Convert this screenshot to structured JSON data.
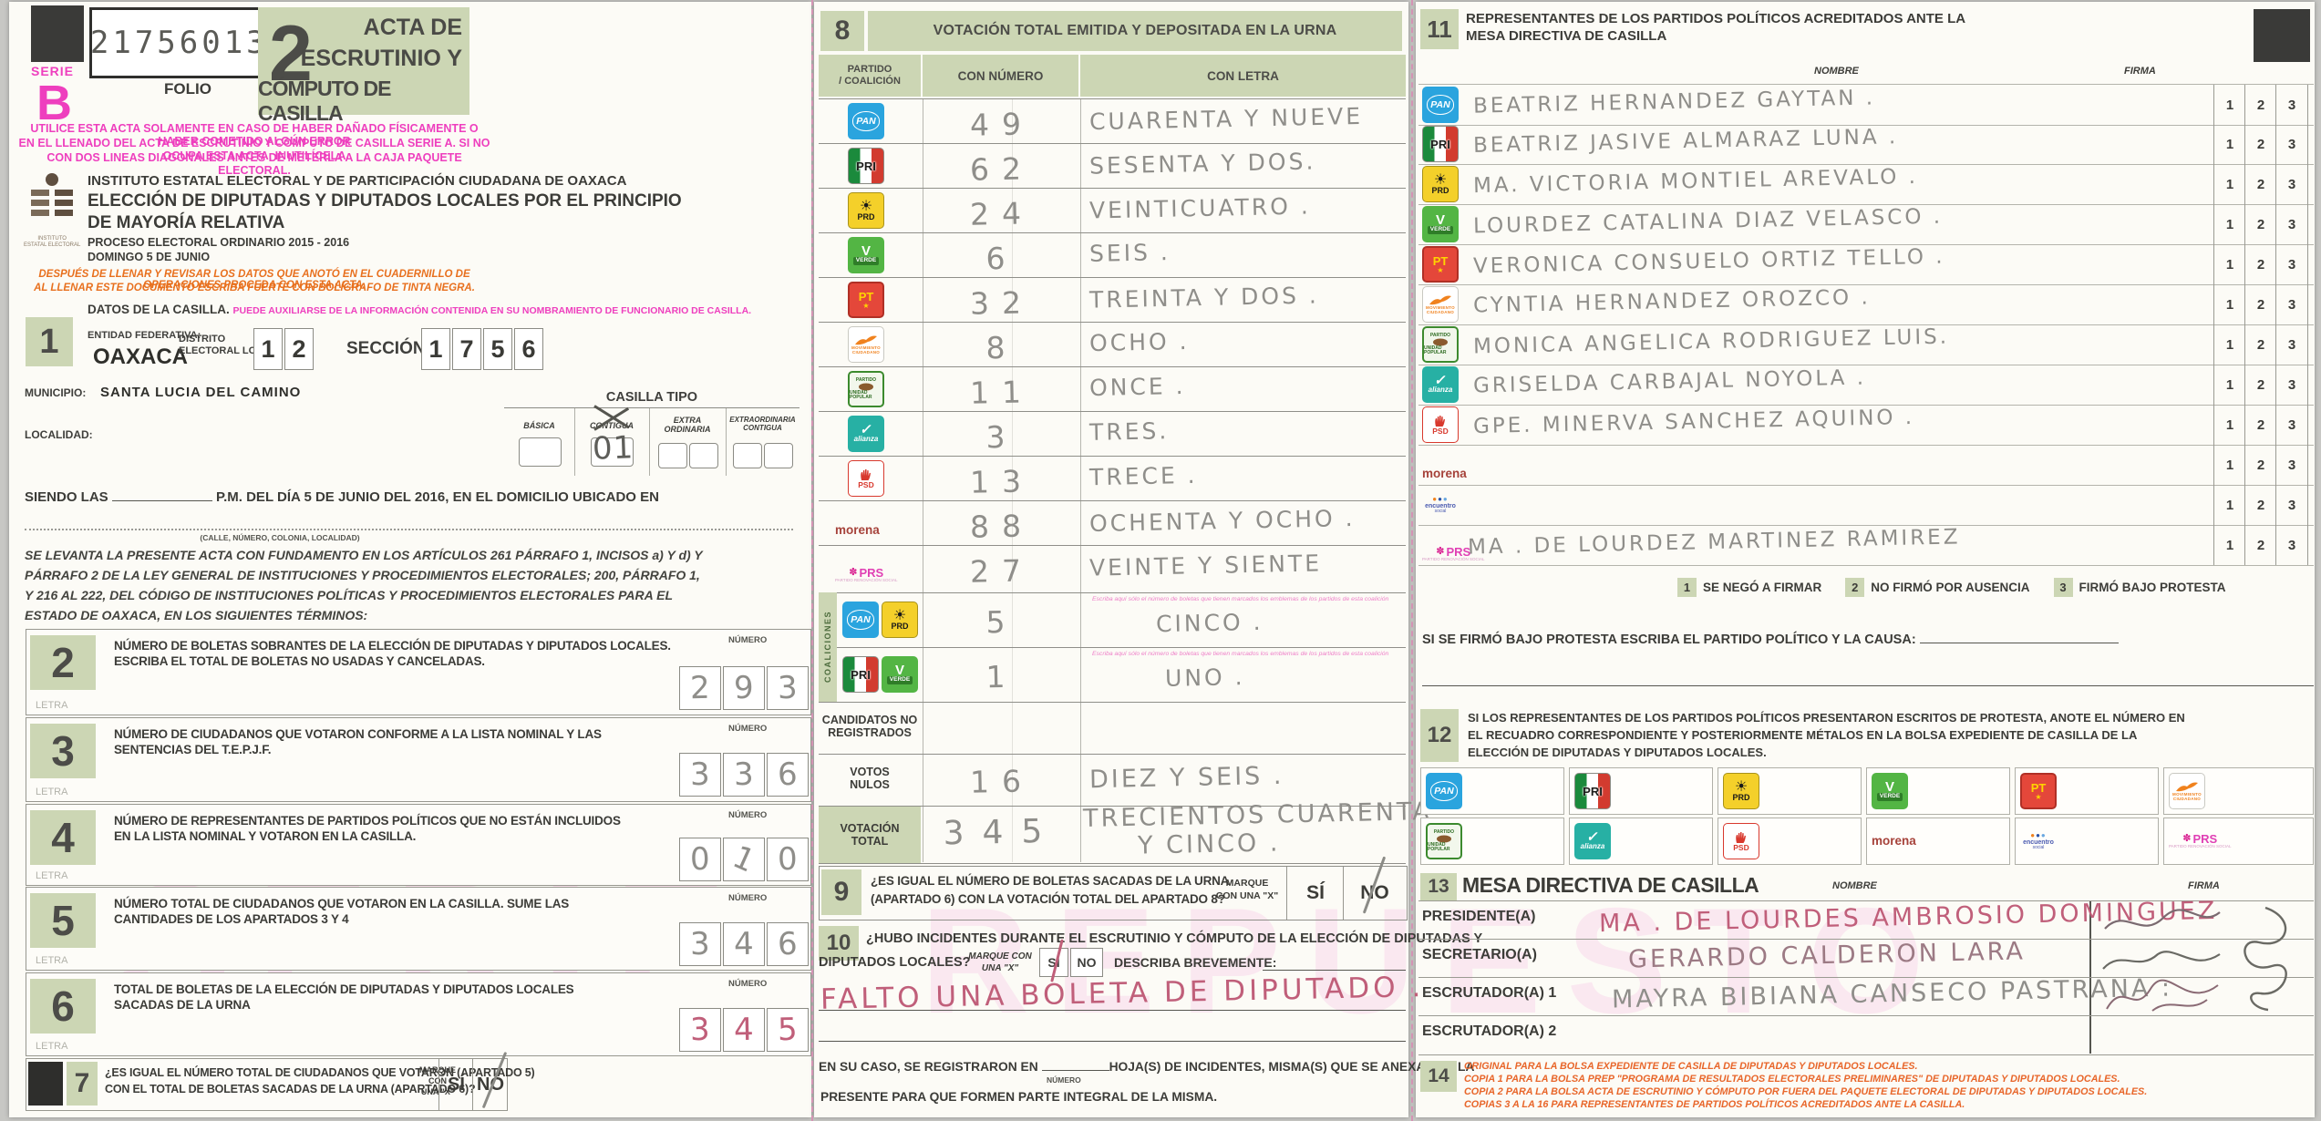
{
  "colors": {
    "accent_green": "#ccd6b4",
    "magenta": "#ee3fbe",
    "orange": "#e8701e",
    "pencil": "#8f8e8a",
    "pink_ink": "#c05f7a"
  },
  "watermark": {
    "left": "SERIE",
    "right": "REPUESTO"
  },
  "labels": {
    "numero": "NÚMERO",
    "letra": "LETRA"
  },
  "header": {
    "serie_label": "SERIE",
    "serie_letter": "B",
    "folio_number": "217560137",
    "folio_label": "FOLIO",
    "acta_number": "2",
    "acta_title_1": "ACTA DE",
    "acta_title_2": "ESCRUTINIO Y",
    "acta_title_3": "CÓMPUTO DE CASILLA",
    "warning_1": "UTILICE ESTA ACTA SOLAMENTE EN CASO DE HABER DAÑADO FÍSICAMENTE O HABER COMETIDO ALGÚN ERROR",
    "warning_2": "EN EL LLENADO DEL ACTA DE ESCRUTINIO Y COMPUTO DE CASILLA SERIE A. SI NO OCUPA ESTA ACTA, INUTILÍCELA",
    "warning_3": "CON DOS LINEAS DIAGONALES ANTES DE METERLA A LA CAJA PAQUETE ELECTORAL.",
    "institute_name": "INSTITUTO ESTATAL ELECTORAL Y DE PARTICIPACIÓN CIUDADANA DE OAXACA",
    "election_1": "ELECCIÓN DE DIPUTADAS Y DIPUTADOS LOCALES POR EL PRINCIPIO",
    "election_2": "DE MAYORÍA RELATIVA",
    "process": "PROCESO ELECTORAL ORDINARIO 2015 - 2016",
    "date": "DOMINGO 5 DE JUNIO",
    "logo_caption_1": "INSTITUTO",
    "logo_caption_2": "ESTATAL ELECTORAL",
    "orange_note_1": "DESPUÉS DE LLENAR Y REVISAR LOS DATOS QUE ANOTÓ EN EL CUADERNILLO DE OPERACIONES PROCEDA CON ESTA ACTA.",
    "orange_note_2": "AL LLENAR ESTE DOCUMENTO ESCRIBA FUERTE CON BOLÍGRAFO DE TINTA NEGRA."
  },
  "s1": {
    "num": "1",
    "title": "DATOS DE LA CASILLA.",
    "title_note": "PUEDE AUXILIARSE DE LA INFORMACIÓN CONTENIDA EN SU NOMBRAMIENTO DE FUNCIONARIO DE CASILLA.",
    "entidad_label": "ENTIDAD FEDERATIVA:",
    "entidad": "OAXACA",
    "distrito_label_1": "DISTRITO",
    "distrito_label_2": "ELECTORAL LOCAL.",
    "distrito_d0": "1",
    "distrito_d1": "2",
    "seccion_label": "SECCIÓN:",
    "seccion_d0": "1",
    "seccion_d1": "7",
    "seccion_d2": "5",
    "seccion_d3": "6",
    "municipio_label": "MUNICIPIO:",
    "municipio": "SANTA LUCIA DEL CAMINO",
    "localidad_label": "LOCALIDAD:",
    "casilla_tipo_label": "CASILLA TIPO",
    "tipo_basica": "BÁSICA",
    "tipo_contigua": "CONTIGUA",
    "tipo_extra_1": "EXTRA",
    "tipo_extra_2": "ORDINARIA",
    "tipo_extraord_1": "EXTRAORDINARIA",
    "tipo_extraord_2": "CONTIGUA",
    "contigua_value": "01",
    "siendo": "SIENDO LAS",
    "siendo_rest": "P.M. DEL DÍA 5 DE JUNIO DEL 2016, EN EL DOMICILIO UBICADO EN",
    "calle_caption": "(CALLE, NÚMERO, COLONIA, LOCALIDAD)"
  },
  "legal_1": "SE LEVANTA LA PRESENTE ACTA CON FUNDAMENTO EN LOS ARTÍCULOS 261 PÁRRAFO 1, INCISOS a) Y d) Y",
  "legal_2": "PÁRRAFO 2 DE LA LEY GENERAL DE INSTITUCIONES Y PROCEDIMIENTOS ELECTORALES; 200, PÁRRAFO 1,",
  "legal_3": "Y 216 AL 222,  DEL CÓDIGO DE INSTITUCIONES POLÍTICAS Y PROCEDIMIENTOS ELECTORALES PARA EL",
  "legal_4": "ESTADO DE OAXACA, EN LOS SIGUIENTES TÉRMINOS:",
  "s2": {
    "num": "2",
    "text_1": "NÚMERO DE BOLETAS SOBRANTES DE LA ELECCIÓN DE DIPUTADAS Y DIPUTADOS LOCALES.",
    "text_2": "ESCRIBA EL TOTAL DE BOLETAS NO USADAS Y CANCELADAS.",
    "d0": "2",
    "d1": "9",
    "d2": "3"
  },
  "s3": {
    "num": "3",
    "text_1": "NÚMERO DE CIUDADANOS QUE VOTARON CONFORME A LA LISTA NOMINAL Y LAS",
    "text_2": "SENTENCIAS DEL T.E.P.J.F.",
    "d0": "3",
    "d1": "3",
    "d2": "6"
  },
  "s4": {
    "num": "4",
    "text_1": "NÚMERO DE REPRESENTANTES DE PARTIDOS POLÍTICOS QUE NO ESTÁN INCLUIDOS",
    "text_2": "EN LA LISTA NOMINAL Y VOTARON EN LA CASILLA.",
    "d0": "0",
    "d1": "1",
    "d2": "0"
  },
  "s5": {
    "num": "5",
    "text_1": "NÚMERO TOTAL DE CIUDADANOS QUE VOTARON EN LA CASILLA. SUME LAS",
    "text_2": "CANTIDADES DE LOS APARTADOS 3 Y 4",
    "d0": "3",
    "d1": "4",
    "d2": "6"
  },
  "s6": {
    "num": "6",
    "text_1": "TOTAL DE BOLETAS DE LA ELECCIÓN DE DIPUTADAS Y DIPUTADOS LOCALES",
    "text_2": "SACADAS DE LA URNA",
    "d0": "3",
    "d1": "4",
    "d2": "5"
  },
  "s7": {
    "num": "7",
    "text_1": "¿ES IGUAL EL NÚMERO TOTAL DE CIUDADANOS QUE VOTARON (APARTADO 5)",
    "text_2": "CON EL TOTAL DE BOLETAS SACADAS  DE LA URNA (APARTADO 6)?",
    "marque_1": "MARQUE",
    "marque_2": "CON",
    "marque_3": "UNA \"X\"",
    "si": "SÍ",
    "no": "NO"
  },
  "s8": {
    "num": "8",
    "title": "VOTACIÓN TOTAL EMITIDA Y DEPOSITADA EN LA URNA",
    "col_partido_1": "PARTIDO",
    "col_partido_2": "/ COALICIÓN",
    "col_numero": "CON NÚMERO",
    "col_letra": "CON LETRA",
    "rows": [
      {
        "party": "pan",
        "num": "49",
        "letra": "CUARENTA Y NUEVE"
      },
      {
        "party": "pri",
        "num": "62",
        "letra": "SESENTA Y DOS."
      },
      {
        "party": "prd",
        "num": "24",
        "letra": "VEINTICUATRO ."
      },
      {
        "party": "verde",
        "num": "6",
        "letra": "SEIS ."
      },
      {
        "party": "pt",
        "num": "32",
        "letra": "TREINTA Y DOS ."
      },
      {
        "party": "mc",
        "num": "8",
        "letra": "OCHO ."
      },
      {
        "party": "pup",
        "num": "11",
        "letra": "ONCE ."
      },
      {
        "party": "na",
        "num": "3",
        "letra": "TRES."
      },
      {
        "party": "psd",
        "num": "13",
        "letra": "TRECE ."
      },
      {
        "party": "morena",
        "num": "88",
        "letra": "OCHENTA Y OCHO ."
      },
      {
        "party": "prs",
        "num": "27",
        "letra": "VEINTE Y SIENTE"
      }
    ],
    "coaliciones_label": "COALICIONES",
    "coal_note": "Escriba aquí sólo el número de boletas que tienen marcados los emblemas de los partidos de esta coalición",
    "coal1": {
      "num": "5",
      "letra": "CINCO ."
    },
    "coal2": {
      "num": "1",
      "letra": "UNO ."
    },
    "cnr_label_1": "CANDIDATOS NO",
    "cnr_label_2": "REGISTRADOS",
    "nulos_label_1": "VOTOS",
    "nulos_label_2": "NULOS",
    "nulos_num": "16",
    "nulos_letra": "DIEZ Y SEIS .",
    "total_label_1": "VOTACIÓN",
    "total_label_2": "TOTAL",
    "total_num": "345",
    "total_letra_1": "TRECIENTOS CUARENTA",
    "total_letra_2": "Y CINCO ."
  },
  "s9": {
    "num": "9",
    "text_1": "¿ES IGUAL EL NÚMERO DE BOLETAS SACADAS DE LA URNA",
    "text_2": "(APARTADO 6) CON LA VOTACIÓN TOTAL DEL APARTADO 8?",
    "marque_1": "MARQUE",
    "marque_2": "CON UNA \"X\"",
    "si": "SÍ",
    "no": "NO"
  },
  "s10": {
    "num": "10",
    "text_1": "¿HUBO INCIDENTES DURANTE EL ESCRUTINIO Y CÓMPUTO DE LA ELECCIÓN  DE DIPUTADAS  Y",
    "text_2": "DIPUTADOS LOCALES?",
    "marque_1": "MARQUE CON",
    "marque_2": "UNA \"X\"",
    "si": "SI",
    "no": "NO",
    "describa": "DESCRIBA BREVEMENTE:",
    "incident_text": "FALTO UNA BOLETA DE DIPUTADO .",
    "caso_1": "EN SU CASO, SE REGISTRARON EN",
    "caso_2": "HOJA(S) DE INCIDENTES, MISMA(S) QUE SE ANEXA(N) A LA",
    "numero_label": "NÚMERO",
    "caso_3": "PRESENTE PARA QUE FORMEN PARTE INTEGRAL DE LA MISMA."
  },
  "s11": {
    "num": "11",
    "title_1": "REPRESENTANTES DE LOS PARTIDOS POLÍTICOS ACREDITADOS ANTE LA",
    "title_2": "MESA DIRECTIVA DE CASILLA",
    "nombre_label": "NOMBRE",
    "firma_label": "FIRMA",
    "c1": "1",
    "c2": "2",
    "c3": "3",
    "rows": [
      {
        "party": "pan",
        "name": "BEATRIZ HERNANDEZ GAYTAN ."
      },
      {
        "party": "pri",
        "name": "BEATRIZ JASIVE ALMARAZ LUNA ."
      },
      {
        "party": "prd",
        "name": "MA. VICTORIA MONTIEL AREVALO ."
      },
      {
        "party": "verde",
        "name": "LOURDEZ CATALINA DIAZ VELASCO ."
      },
      {
        "party": "pt",
        "name": "VERONICA CONSUELO ORTIZ TELLO ."
      },
      {
        "party": "mc",
        "name": "CYNTIA HERNANDEZ OROZCO ."
      },
      {
        "party": "pup",
        "name": "MONICA ANGELICA RODRIGUEZ LUIS."
      },
      {
        "party": "na",
        "name": "GRISELDA CARBAJAL NOYOLA ."
      },
      {
        "party": "psd",
        "name": "GPE. MINERVA SANCHEZ AQUINO ."
      },
      {
        "party": "morena",
        "name": ""
      },
      {
        "party": "es",
        "name": ""
      },
      {
        "party": "prs",
        "name": "MA . DE LOURDEZ MARTINEZ RAMIREZ"
      }
    ],
    "legend_1n": "1",
    "legend_1": "SE NEGÓ A FIRMAR",
    "legend_2n": "2",
    "legend_2": "NO FIRMÓ POR AUSENCIA",
    "legend_3n": "3",
    "legend_3": "FIRMÓ BAJO PROTESTA",
    "protesta": "SI SE FIRMÓ BAJO PROTESTA ESCRIBA EL PARTIDO POLÍTICO Y LA CAUSA:"
  },
  "s12": {
    "num": "12",
    "text_1": "SI LOS REPRESENTANTES DE LOS PARTIDOS POLÍTICOS PRESENTARON ESCRITOS DE PROTESTA, ANOTE EL NÚMERO EN",
    "text_2": "EL RECUADRO CORRESPONDIENTE Y POSTERIORMENTE MÉTALOS EN LA BOLSA EXPEDIENTE DE CASILLA DE LA",
    "text_3": "ELECCIÓN DE DIPUTADAS Y DIPUTADOS LOCALES."
  },
  "s13": {
    "num": "13",
    "title": "MESA DIRECTIVA DE CASILLA",
    "nombre_label": "NOMBRE",
    "firma_label": "FIRMA",
    "rows": [
      {
        "role": "PRESIDENTE(A)",
        "name": "MA . DE LOURDES AMBROSIO DOMINGUEZ"
      },
      {
        "role": "SECRETARIO(A)",
        "name": "GERARDO CALDERON LARA"
      },
      {
        "role": "ESCRUTADOR(A) 1",
        "name": "MAYRA BIBIANA CANSECO PASTRANA :"
      },
      {
        "role": "ESCRUTADOR(A) 2",
        "name": ""
      }
    ]
  },
  "s14": {
    "num": "14",
    "line_1": "ORIGINAL PARA LA BOLSA EXPEDIENTE DE CASILLA DE DIPUTADAS Y DIPUTADOS LOCALES.",
    "line_2": "COPIA 1 PARA LA BOLSA PREP \"PROGRAMA DE RESULTADOS ELECTORALES PRELIMINARES\" DE DIPUTADAS Y DIPUTADOS LOCALES.",
    "line_3": "COPIA 2 PARA LA BOLSA ACTA DE ESCRUTINIO Y CÓMPUTO POR FUERA DEL PAQUETE ELECTORAL DE DIPUTADAS Y DIPUTADOS LOCALES.",
    "line_4": "COPIAS 3 A LA 16 PARA REPRESENTANTES DE PARTIDOS POLÍTICOS ACREDITADOS ANTE LA CASILLA."
  },
  "party_logos": {
    "pan": {
      "label": "PAN"
    },
    "pri": {
      "label": "PRI"
    },
    "prd": {
      "label": "PRD",
      "sun": "☀"
    },
    "verde": {
      "label": "VERDE",
      "v": "V"
    },
    "pt": {
      "label": "PT",
      "star": "★"
    },
    "mc": {
      "label_1": "MOVIMIENTO",
      "label_2": "CIUDADANO"
    },
    "pup": {
      "label_1": "PARTIDO",
      "label_2": "UNIDAD POPULAR"
    },
    "na": {
      "label": "alianza",
      "v": "✓"
    },
    "psd": {
      "label": "PSD"
    },
    "morena": {
      "label": "morena"
    },
    "es": {
      "dots": "●●●",
      "label_1": "encuentro",
      "label_2": "social"
    },
    "prs": {
      "label": "PRS",
      "flower": "✽",
      "sub": "PARTIDO RENOVACIÓN SOCIAL"
    }
  }
}
